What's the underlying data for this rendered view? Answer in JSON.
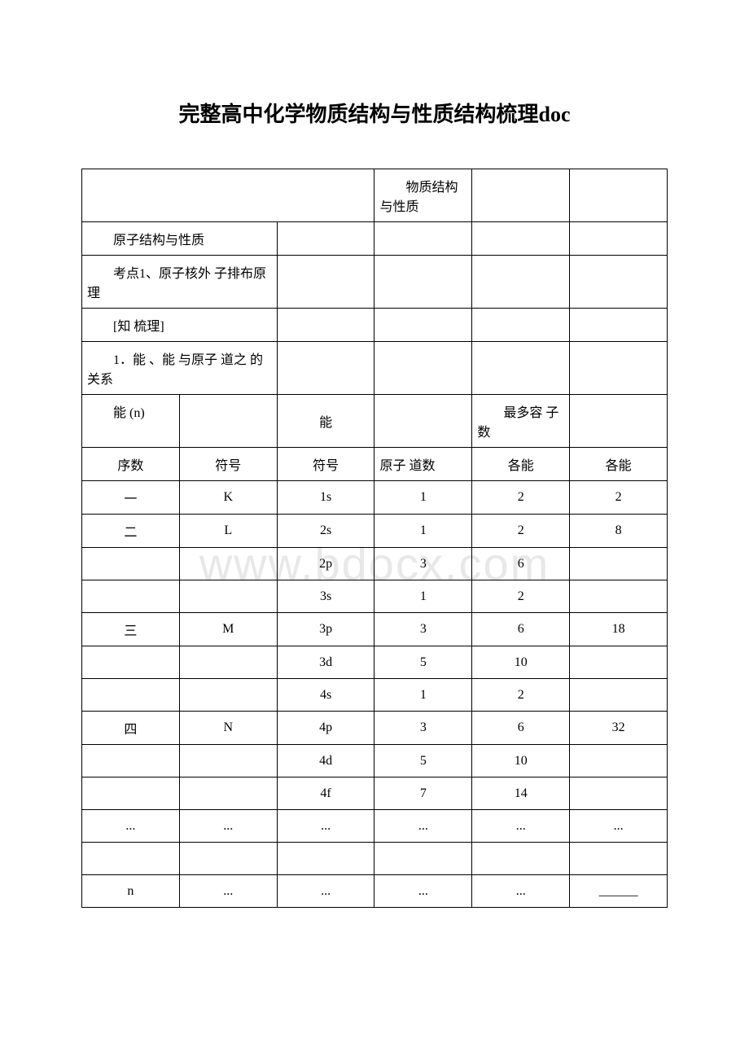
{
  "title": "完整高中化学物质结构与性质结构梳理doc",
  "watermark": "www.bdocx.com",
  "table": {
    "colWidths": [
      "16.6%",
      "16.6%",
      "16.6%",
      "16.6%",
      "16.6%",
      "16.6%"
    ],
    "rows": [
      {
        "cells": [
          {
            "text": "",
            "colspan": 3
          },
          {
            "text": "　　物质结构与性质"
          },
          {
            "text": ""
          },
          {
            "text": ""
          }
        ]
      },
      {
        "cells": [
          {
            "text": "　　原子结构与性质",
            "colspan": 2
          },
          {
            "text": ""
          },
          {
            "text": ""
          },
          {
            "text": ""
          },
          {
            "text": ""
          }
        ]
      },
      {
        "cells": [
          {
            "text": "　　考点1、原子核外 子排布原理",
            "colspan": 2
          },
          {
            "text": ""
          },
          {
            "text": ""
          },
          {
            "text": ""
          },
          {
            "text": ""
          }
        ]
      },
      {
        "cells": [
          {
            "text": "　　[知 梳理]",
            "colspan": 2
          },
          {
            "text": ""
          },
          {
            "text": ""
          },
          {
            "text": ""
          },
          {
            "text": ""
          }
        ]
      },
      {
        "cells": [
          {
            "text": "　　1．能 、能 与原子 道之 的关系",
            "colspan": 2
          },
          {
            "text": ""
          },
          {
            "text": ""
          },
          {
            "text": ""
          },
          {
            "text": ""
          }
        ]
      },
      {
        "cells": [
          {
            "text": "　　能 (n)"
          },
          {
            "text": ""
          },
          {
            "text": "能",
            "align": "center"
          },
          {
            "text": ""
          },
          {
            "text": "　　最多容 子数"
          },
          {
            "text": ""
          }
        ]
      },
      {
        "cells": [
          {
            "text": "序数",
            "align": "center"
          },
          {
            "text": "符号",
            "align": "center"
          },
          {
            "text": "符号",
            "align": "center"
          },
          {
            "text": "原子 道数"
          },
          {
            "text": "各能",
            "align": "center"
          },
          {
            "text": "各能",
            "align": "center"
          }
        ]
      },
      {
        "cells": [
          {
            "text": "一",
            "align": "center"
          },
          {
            "text": "K",
            "align": "center"
          },
          {
            "text": "1s",
            "align": "center"
          },
          {
            "text": "1",
            "align": "center"
          },
          {
            "text": "2",
            "align": "center"
          },
          {
            "text": "2",
            "align": "center"
          }
        ]
      },
      {
        "cells": [
          {
            "text": "二",
            "align": "center"
          },
          {
            "text": "L",
            "align": "center"
          },
          {
            "text": "2s",
            "align": "center"
          },
          {
            "text": "1",
            "align": "center"
          },
          {
            "text": "2",
            "align": "center"
          },
          {
            "text": "8",
            "align": "center"
          }
        ]
      },
      {
        "cells": [
          {
            "text": ""
          },
          {
            "text": ""
          },
          {
            "text": "2p",
            "align": "center"
          },
          {
            "text": "3",
            "align": "center"
          },
          {
            "text": "6",
            "align": "center"
          },
          {
            "text": ""
          }
        ]
      },
      {
        "cells": [
          {
            "text": ""
          },
          {
            "text": ""
          },
          {
            "text": "3s",
            "align": "center"
          },
          {
            "text": "1",
            "align": "center"
          },
          {
            "text": "2",
            "align": "center"
          },
          {
            "text": ""
          }
        ]
      },
      {
        "cells": [
          {
            "text": "三",
            "align": "center"
          },
          {
            "text": "M",
            "align": "center"
          },
          {
            "text": "3p",
            "align": "center"
          },
          {
            "text": "3",
            "align": "center"
          },
          {
            "text": "6",
            "align": "center"
          },
          {
            "text": "18",
            "align": "center"
          }
        ]
      },
      {
        "cells": [
          {
            "text": ""
          },
          {
            "text": ""
          },
          {
            "text": "3d",
            "align": "center"
          },
          {
            "text": "5",
            "align": "center"
          },
          {
            "text": "10",
            "align": "center"
          },
          {
            "text": ""
          }
        ]
      },
      {
        "cells": [
          {
            "text": ""
          },
          {
            "text": ""
          },
          {
            "text": "4s",
            "align": "center"
          },
          {
            "text": "1",
            "align": "center"
          },
          {
            "text": "2",
            "align": "center"
          },
          {
            "text": ""
          }
        ]
      },
      {
        "cells": [
          {
            "text": "四",
            "align": "center"
          },
          {
            "text": "N",
            "align": "center"
          },
          {
            "text": "4p",
            "align": "center"
          },
          {
            "text": "3",
            "align": "center"
          },
          {
            "text": "6",
            "align": "center"
          },
          {
            "text": "32",
            "align": "center"
          }
        ]
      },
      {
        "cells": [
          {
            "text": ""
          },
          {
            "text": ""
          },
          {
            "text": "4d",
            "align": "center"
          },
          {
            "text": "5",
            "align": "center"
          },
          {
            "text": "10",
            "align": "center"
          },
          {
            "text": ""
          }
        ]
      },
      {
        "cells": [
          {
            "text": ""
          },
          {
            "text": ""
          },
          {
            "text": "4f",
            "align": "center"
          },
          {
            "text": "7",
            "align": "center"
          },
          {
            "text": "14",
            "align": "center"
          },
          {
            "text": ""
          }
        ]
      },
      {
        "cells": [
          {
            "text": "...",
            "align": "center"
          },
          {
            "text": "...",
            "align": "center"
          },
          {
            "text": "...",
            "align": "center"
          },
          {
            "text": "...",
            "align": "center"
          },
          {
            "text": "...",
            "align": "center"
          },
          {
            "text": "...",
            "align": "center"
          }
        ]
      },
      {
        "cells": [
          {
            "text": ""
          },
          {
            "text": ""
          },
          {
            "text": ""
          },
          {
            "text": ""
          },
          {
            "text": ""
          },
          {
            "text": ""
          }
        ]
      },
      {
        "cells": [
          {
            "text": "n",
            "align": "center"
          },
          {
            "text": "...",
            "align": "center"
          },
          {
            "text": "...",
            "align": "center"
          },
          {
            "text": "...",
            "align": "center"
          },
          {
            "text": "...",
            "align": "center"
          },
          {
            "text": "______",
            "align": "center"
          }
        ]
      }
    ]
  }
}
